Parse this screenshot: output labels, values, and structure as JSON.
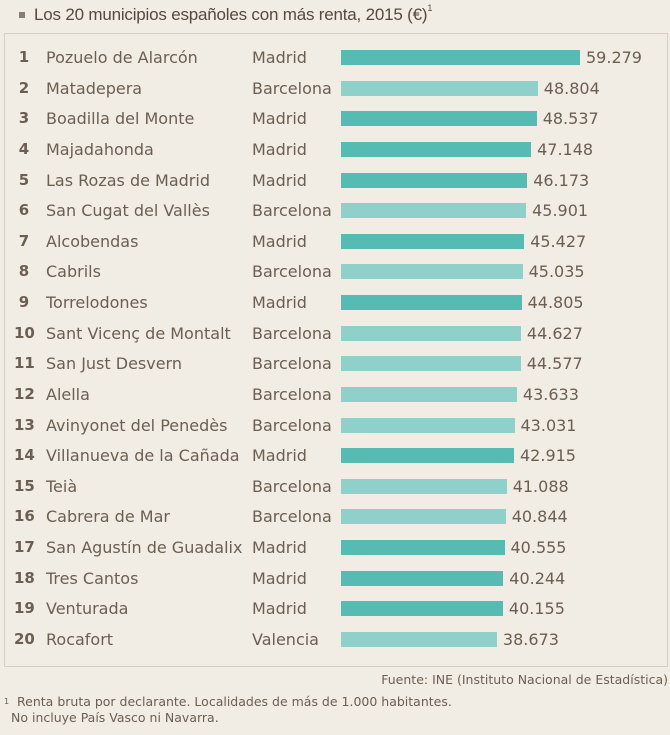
{
  "title": "Los 20 municipios españoles con más renta, 2015 (€)",
  "title_sup": "1",
  "colors": {
    "dark": "#55bbb3",
    "light": "#8fd0cb"
  },
  "chart_data": {
    "type": "bar",
    "orientation": "horizontal",
    "title": "Los 20 municipios españoles con más renta, 2015 (€)",
    "xlim": [
      0,
      59279
    ],
    "rows": [
      {
        "rank": "1",
        "municipality": "Pozuelo de Alarcón",
        "province": "Madrid",
        "value": 59279,
        "label": "59.279"
      },
      {
        "rank": "2",
        "municipality": "Matadepera",
        "province": "Barcelona",
        "value": 48804,
        "label": "48.804"
      },
      {
        "rank": "3",
        "municipality": "Boadilla del Monte",
        "province": "Madrid",
        "value": 48537,
        "label": "48.537"
      },
      {
        "rank": "4",
        "municipality": "Majadahonda",
        "province": "Madrid",
        "value": 47148,
        "label": "47.148"
      },
      {
        "rank": "5",
        "municipality": "Las Rozas de Madrid",
        "province": "Madrid",
        "value": 46173,
        "label": "46.173"
      },
      {
        "rank": "6",
        "municipality": "San Cugat del Vallès",
        "province": "Barcelona",
        "value": 45901,
        "label": "45.901"
      },
      {
        "rank": "7",
        "municipality": "Alcobendas",
        "province": "Madrid",
        "value": 45427,
        "label": "45.427"
      },
      {
        "rank": "8",
        "municipality": "Cabrils",
        "province": "Barcelona",
        "value": 45035,
        "label": "45.035"
      },
      {
        "rank": "9",
        "municipality": "Torrelodones",
        "province": "Madrid",
        "value": 44805,
        "label": "44.805"
      },
      {
        "rank": "10",
        "municipality": "Sant Vicenç de Montalt",
        "province": "Barcelona",
        "value": 44627,
        "label": "44.627"
      },
      {
        "rank": "11",
        "municipality": "San Just Desvern",
        "province": "Barcelona",
        "value": 44577,
        "label": "44.577"
      },
      {
        "rank": "12",
        "municipality": "Alella",
        "province": "Barcelona",
        "value": 43633,
        "label": "43.633"
      },
      {
        "rank": "13",
        "municipality": "Avinyonet del Penedès",
        "province": "Barcelona",
        "value": 43031,
        "label": "43.031"
      },
      {
        "rank": "14",
        "municipality": "Villanueva de la Cañada",
        "province": "Madrid",
        "value": 42915,
        "label": "42.915"
      },
      {
        "rank": "15",
        "municipality": "Teià",
        "province": "Barcelona",
        "value": 41088,
        "label": "41.088"
      },
      {
        "rank": "16",
        "municipality": "Cabrera de Mar",
        "province": "Barcelona",
        "value": 40844,
        "label": "40.844"
      },
      {
        "rank": "17",
        "municipality": "San Agustín de Guadalix",
        "province": "Madrid",
        "value": 40555,
        "label": "40.555"
      },
      {
        "rank": "18",
        "municipality": "Tres Cantos",
        "province": "Madrid",
        "value": 40244,
        "label": "40.244"
      },
      {
        "rank": "19",
        "municipality": "Venturada",
        "province": "Madrid",
        "value": 40155,
        "label": "40.155"
      },
      {
        "rank": "20",
        "municipality": "Rocafort",
        "province": "Valencia",
        "value": 38673,
        "label": "38.673"
      }
    ]
  },
  "source": "Fuente: INE (Instituto Nacional de Estadística)",
  "footnote_mark": "1",
  "footnote_line1": "Renta bruta por declarante. Localidades de más de 1.000 habitantes.",
  "footnote_line2": "No incluye País Vasco ni Navarra."
}
